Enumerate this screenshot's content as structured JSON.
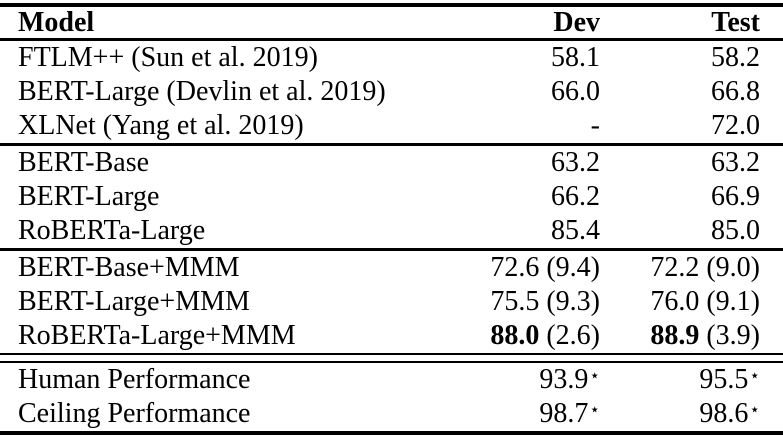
{
  "colors": {
    "text": "#000000",
    "rule": "#000000",
    "background": "#ffffff"
  },
  "table": {
    "header": {
      "model": "Model",
      "dev": "Dev",
      "test": "Test"
    },
    "groups": [
      {
        "separator_after": "line",
        "rows": [
          {
            "model": "FTLM++ (Sun et al. 2019)",
            "dev": {
              "main": "58.1"
            },
            "test": {
              "main": "58.2"
            }
          },
          {
            "model": "BERT-Large (Devlin et al. 2019)",
            "dev": {
              "main": "66.0"
            },
            "test": {
              "main": "66.8"
            }
          },
          {
            "model": "XLNet (Yang et al. 2019)",
            "dev": {
              "main": "-"
            },
            "test": {
              "main": "72.0"
            }
          }
        ]
      },
      {
        "separator_after": "line",
        "rows": [
          {
            "model": "BERT-Base",
            "dev": {
              "main": "63.2"
            },
            "test": {
              "main": "63.2"
            }
          },
          {
            "model": "BERT-Large",
            "dev": {
              "main": "66.2"
            },
            "test": {
              "main": "66.9"
            }
          },
          {
            "model": "RoBERTa-Large",
            "dev": {
              "main": "85.4"
            },
            "test": {
              "main": "85.0"
            }
          }
        ]
      },
      {
        "separator_after": "double",
        "rows": [
          {
            "model": "BERT-Base+MMM",
            "dev": {
              "main": "72.6",
              "suffix": " (9.4)"
            },
            "test": {
              "main": "72.2",
              "suffix": " (9.0)"
            }
          },
          {
            "model": "BERT-Large+MMM",
            "dev": {
              "main": "75.5",
              "suffix": " (9.3)"
            },
            "test": {
              "main": "76.0",
              "suffix": " (9.1)"
            }
          },
          {
            "model": "RoBERTa-Large+MMM",
            "dev": {
              "main": "88.0",
              "suffix": " (2.6)",
              "bold": true
            },
            "test": {
              "main": "88.9",
              "suffix": " (3.9)",
              "bold": true
            }
          }
        ]
      },
      {
        "separator_after": "none",
        "rows": [
          {
            "model": "Human Performance",
            "dev": {
              "main": "93.9",
              "sup": "⋆"
            },
            "test": {
              "main": "95.5",
              "sup": "⋆"
            }
          },
          {
            "model": "Ceiling Performance",
            "dev": {
              "main": "98.7",
              "sup": "⋆"
            },
            "test": {
              "main": "98.6",
              "sup": "⋆"
            }
          }
        ]
      }
    ]
  }
}
